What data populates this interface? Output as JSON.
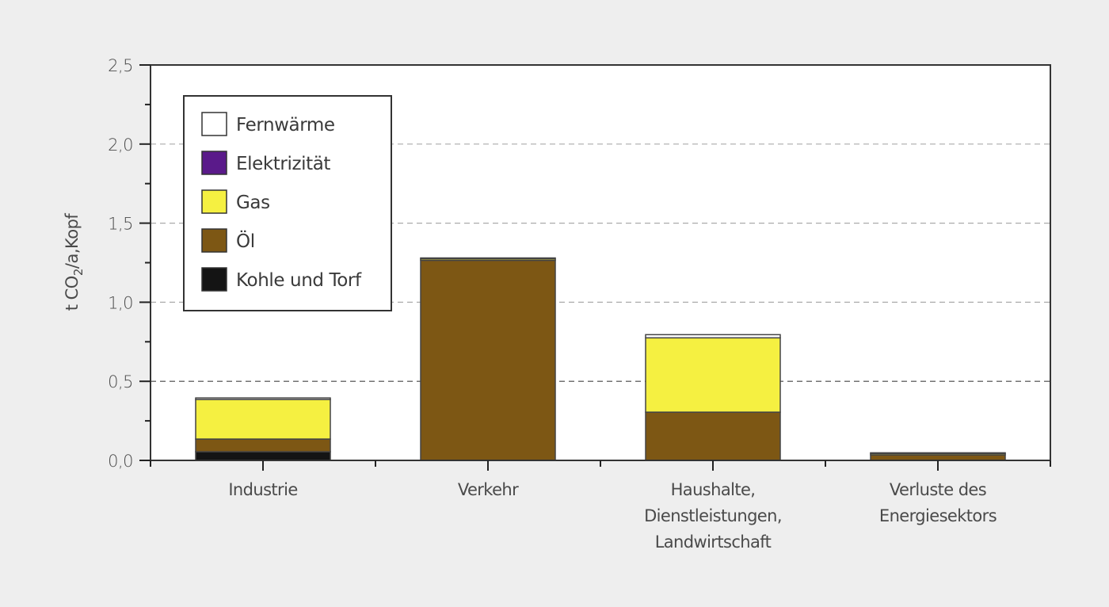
{
  "chart_data": {
    "type": "bar",
    "stacked": true,
    "title": "",
    "xlabel": "",
    "ylabel": "t CO2/a,Kopf",
    "ylabel_parts": {
      "pre": "t CO",
      "sub": "2",
      "post": "/a,Kopf"
    },
    "ylim": [
      0,
      2.5
    ],
    "yticks": [
      {
        "value": 0.0,
        "label": "0,0"
      },
      {
        "value": 0.5,
        "label": "0,5"
      },
      {
        "value": 1.0,
        "label": "1,0"
      },
      {
        "value": 1.5,
        "label": "1,5"
      },
      {
        "value": 2.0,
        "label": "2,0"
      },
      {
        "value": 2.5,
        "label": "2,5"
      }
    ],
    "minor_tick_step": 0.25,
    "grid": {
      "y": true,
      "lines": [
        0.5,
        1.0,
        1.5,
        2.0
      ],
      "style": "dashed"
    },
    "legend_position": "upper-left-inside",
    "categories": [
      [
        "Industrie"
      ],
      [
        "Verkehr"
      ],
      [
        "Haushalte,",
        "Dienstleistungen,",
        "Landwirtschaft"
      ],
      [
        "Verluste des",
        "Energiesektors"
      ]
    ],
    "series": [
      {
        "name": "Kohle und Torf",
        "color": "#141414",
        "values": [
          0.055,
          0.0,
          0.0,
          0.0
        ]
      },
      {
        "name": "Öl",
        "color": "#7d5714",
        "values": [
          0.08,
          1.265,
          0.305,
          0.035
        ]
      },
      {
        "name": "Gas",
        "color": "#f5f041",
        "values": [
          0.25,
          0.01,
          0.47,
          0.01
        ]
      },
      {
        "name": "Elektrizität",
        "color": "#5a1a8a",
        "values": [
          0.0,
          0.0,
          0.0,
          0.0
        ]
      },
      {
        "name": "Fernwärme",
        "color": "#ffffff",
        "values": [
          0.01,
          0.005,
          0.02,
          0.003
        ]
      }
    ],
    "legend_order": [
      "Fernwärme",
      "Elektrizität",
      "Gas",
      "Öl",
      "Kohle und Torf"
    ],
    "totals": [
      0.395,
      1.28,
      0.795,
      0.048
    ]
  },
  "colors": {
    "background": "#eeeeee",
    "plot_bg": "#ffffff",
    "axis": "#333333",
    "grid": "#aaaaaa",
    "grid_dark": "#444444",
    "bar_edge": "#444444"
  }
}
